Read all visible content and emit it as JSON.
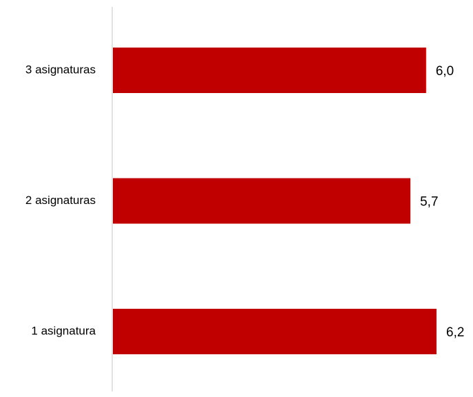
{
  "chart_data": {
    "type": "bar",
    "orientation": "horizontal",
    "categories": [
      "3 asignaturas",
      "2 asignaturas",
      "1 asignatura"
    ],
    "values": [
      6.0,
      5.7,
      6.2
    ],
    "value_labels": [
      "6,0",
      "5,7",
      "6,2"
    ],
    "title": "",
    "xlabel": "",
    "ylabel": "",
    "xlim": [
      0,
      6.5
    ],
    "grid": false,
    "legend": "none",
    "bar_color": "#C00000",
    "axis_color": "#D9D9D9"
  }
}
